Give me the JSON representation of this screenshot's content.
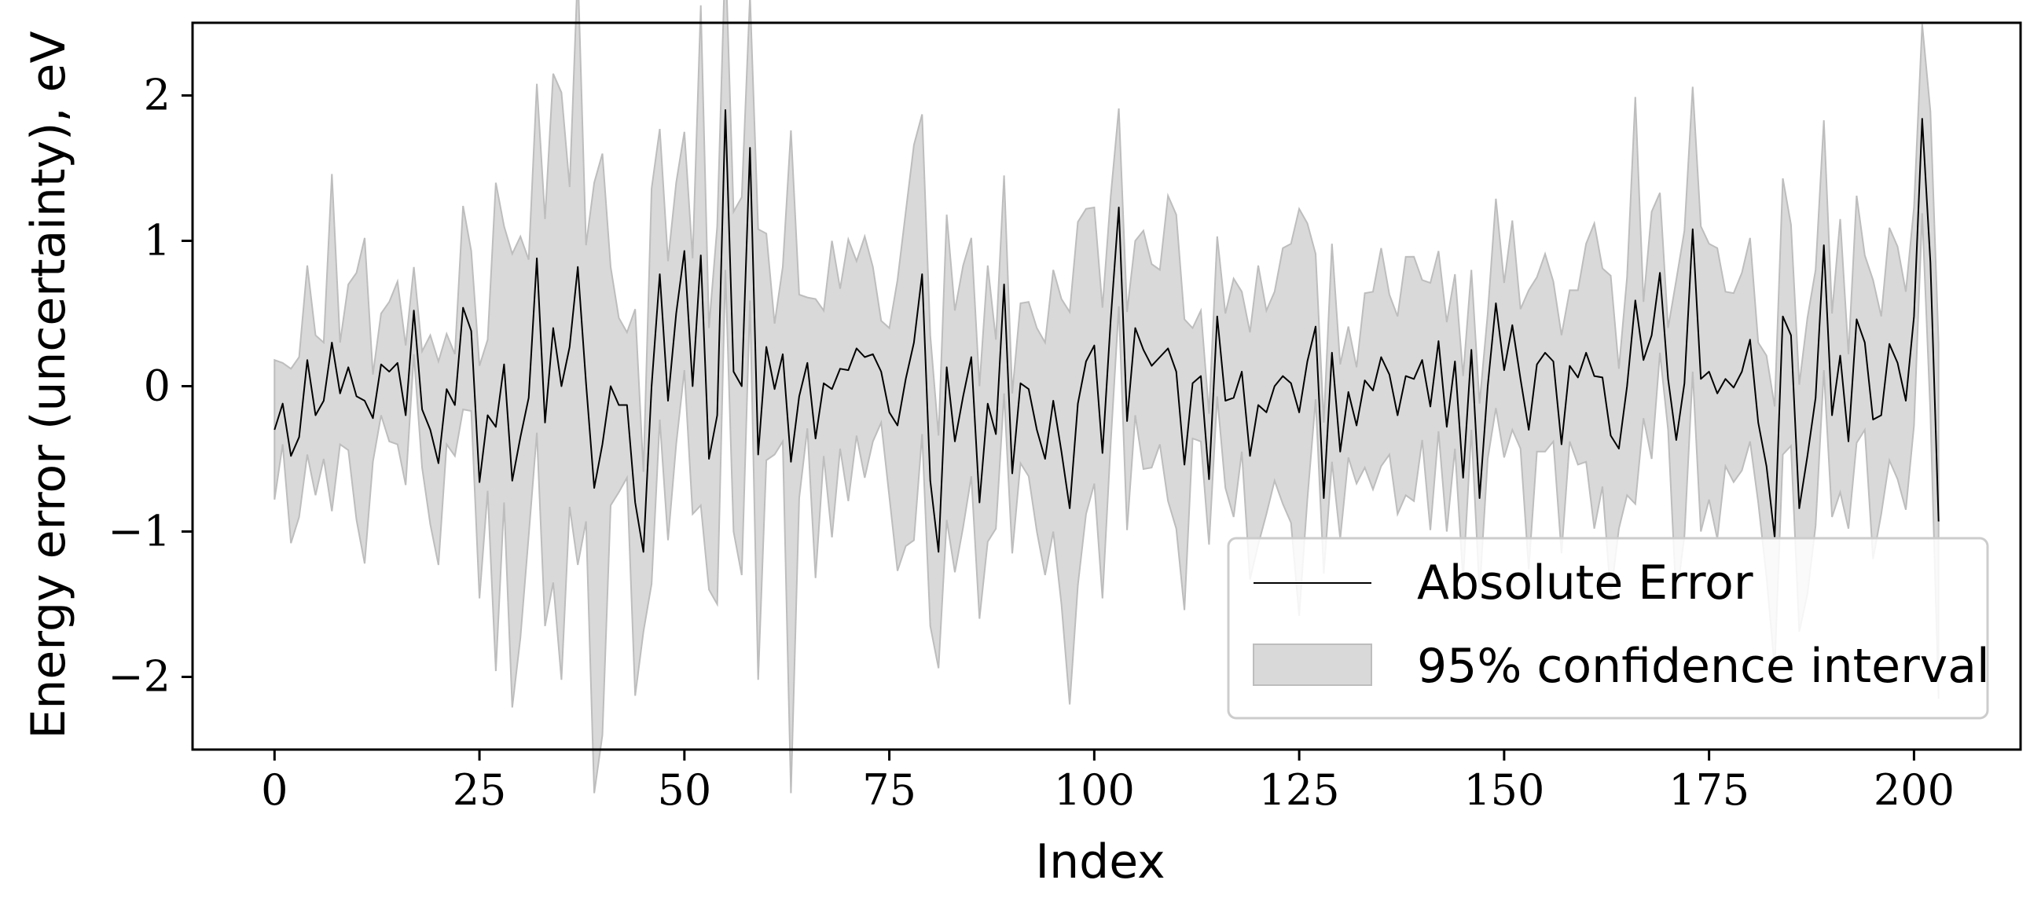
{
  "chart_data": {
    "type": "line",
    "xlabel": "Index",
    "ylabel": "Energy error (uncertainty), eV",
    "xlim": [
      -10,
      213
    ],
    "ylim": [
      -2.5,
      2.5
    ],
    "x_ticks": [
      0,
      25,
      50,
      75,
      100,
      125,
      150,
      175,
      200
    ],
    "y_ticks": [
      2,
      1,
      0,
      -1,
      -2
    ],
    "x_tick_labels": [
      "0",
      "25",
      "50",
      "75",
      "100",
      "125",
      "150",
      "175",
      "200"
    ],
    "y_tick_labels": [
      "2",
      "1",
      "0",
      "−1",
      "−2"
    ],
    "grid": false,
    "legend_position": "lower-right",
    "legend": [
      "Absolute Error",
      "95% confidence interval"
    ],
    "colors": {
      "line": "#000000",
      "band_fill": "#d9d9d9",
      "band_edge": "#bdbdbd"
    },
    "series": [
      {
        "name": "Absolute Error",
        "x_start": 0,
        "values": [
          -0.3,
          -0.12,
          -0.48,
          -0.35,
          0.18,
          -0.2,
          -0.1,
          0.3,
          -0.05,
          0.13,
          -0.07,
          -0.1,
          -0.22,
          0.15,
          0.1,
          0.16,
          -0.2,
          0.52,
          -0.16,
          -0.3,
          -0.53,
          -0.02,
          -0.13,
          0.54,
          0.38,
          -0.66,
          -0.2,
          -0.28,
          0.15,
          -0.65,
          -0.35,
          -0.08,
          0.88,
          -0.25,
          0.4,
          0.0,
          0.27,
          0.82,
          0.02,
          -0.7,
          -0.4,
          0.0,
          -0.13,
          -0.13,
          -0.8,
          -1.14,
          0.0,
          0.77,
          -0.1,
          0.5,
          0.93,
          0.0,
          0.9,
          -0.5,
          -0.2,
          1.9,
          0.1,
          0.0,
          1.64,
          -0.47,
          0.27,
          -0.02,
          0.22,
          -0.52,
          -0.07,
          0.16,
          -0.36,
          0.02,
          -0.02,
          0.12,
          0.11,
          0.26,
          0.2,
          0.22,
          0.1,
          -0.18,
          -0.27,
          0.05,
          0.3,
          0.77,
          -0.65,
          -1.14,
          0.13,
          -0.38,
          -0.07,
          0.2,
          -0.8,
          -0.12,
          -0.33,
          0.7,
          -0.6,
          0.02,
          -0.02,
          -0.3,
          -0.5,
          -0.1,
          -0.45,
          -0.84,
          -0.12,
          0.17,
          0.28,
          -0.46,
          0.45,
          1.23,
          -0.24,
          0.4,
          0.25,
          0.14,
          0.2,
          0.26,
          0.1,
          -0.54,
          0.02,
          0.07,
          -0.64,
          0.48,
          -0.1,
          -0.08,
          0.1,
          -0.48,
          -0.13,
          -0.18,
          0.0,
          0.07,
          0.02,
          -0.18,
          0.17,
          0.41,
          -0.77,
          0.23,
          -0.45,
          -0.04,
          -0.27,
          0.04,
          -0.03,
          0.2,
          0.08,
          -0.2,
          0.07,
          0.05,
          0.18,
          -0.14,
          0.31,
          -0.28,
          0.17,
          -0.63,
          0.25,
          -0.77,
          0.0,
          0.57,
          0.11,
          0.42,
          0.05,
          -0.3,
          0.15,
          0.23,
          0.17,
          -0.4,
          0.14,
          0.06,
          0.23,
          0.07,
          0.06,
          -0.34,
          -0.43,
          0.0,
          0.59,
          0.18,
          0.35,
          0.78,
          0.05,
          -0.37,
          0.02,
          1.08,
          0.05,
          0.1,
          -0.05,
          0.05,
          -0.01,
          0.1,
          0.32,
          -0.25,
          -0.55,
          -1.04,
          0.48,
          0.35,
          -0.84,
          -0.48,
          -0.08,
          0.97,
          -0.2,
          0.21,
          -0.38,
          0.46,
          0.3,
          -0.23,
          -0.2,
          0.29,
          0.16,
          -0.1,
          0.48,
          1.84,
          0.85,
          -0.93
        ]
      },
      {
        "name": "95% confidence interval",
        "x_start": 0,
        "half_width": [
          0.48,
          0.28,
          0.6,
          0.55,
          0.65,
          0.55,
          0.4,
          1.16,
          0.35,
          0.57,
          0.85,
          1.12,
          0.3,
          0.35,
          0.48,
          0.56,
          0.48,
          0.3,
          0.4,
          0.65,
          0.7,
          0.38,
          0.35,
          0.7,
          0.55,
          0.8,
          0.52,
          1.68,
          0.95,
          1.56,
          1.38,
          0.95,
          1.2,
          1.4,
          1.75,
          2.02,
          1.1,
          2.05,
          0.95,
          2.1,
          2.0,
          0.82,
          0.6,
          0.5,
          1.33,
          0.55,
          1.36,
          1.0,
          0.96,
          0.9,
          0.82,
          0.88,
          1.72,
          0.9,
          1.3,
          1.1,
          1.1,
          1.3,
          1.05,
          1.55,
          0.78,
          0.45,
          0.6,
          2.28,
          0.7,
          0.45,
          0.96,
          0.5,
          1.02,
          0.55,
          0.9,
          0.6,
          0.83,
          0.6,
          0.35,
          0.58,
          1.0,
          1.15,
          1.36,
          1.1,
          1.0,
          0.8,
          1.05,
          0.9,
          0.9,
          0.82,
          0.8,
          0.95,
          0.65,
          0.75,
          0.55,
          0.55,
          0.6,
          0.7,
          0.8,
          0.9,
          1.05,
          1.35,
          1.25,
          1.05,
          0.95,
          1.0,
          0.85,
          0.68,
          0.75,
          0.6,
          0.82,
          0.7,
          0.6,
          1.05,
          1.08,
          1.0,
          0.38,
          0.45,
          0.45,
          0.55,
          0.6,
          0.82,
          0.55,
          0.85,
          0.96,
          0.7,
          0.65,
          0.88,
          0.96,
          1.4,
          0.95,
          0.5,
          0.52,
          0.75,
          0.6,
          0.45,
          0.4,
          0.6,
          0.68,
          0.75,
          0.55,
          0.68,
          0.82,
          0.84,
          0.55,
          0.85,
          0.62,
          0.72,
          0.6,
          0.7,
          0.55,
          0.65,
          0.5,
          0.72,
          0.6,
          0.72,
          0.48,
          0.96,
          0.6,
          0.68,
          0.55,
          0.75,
          0.52,
          0.6,
          0.75,
          1.05,
          0.75,
          1.1,
          0.55,
          0.75,
          1.4,
          0.4,
          0.85,
          0.55,
          0.35,
          1.1,
          1.05,
          0.98,
          1.05,
          0.88,
          1.0,
          0.6,
          0.65,
          0.68,
          0.7,
          0.55,
          0.76,
          0.9,
          0.95,
          0.76,
          0.85,
          0.95,
          0.88,
          0.86,
          0.7,
          0.94,
          0.6,
          0.85,
          0.6,
          0.96,
          0.68,
          0.8,
          0.8,
          0.75,
          0.75,
          0.65,
          1.04,
          1.22
        ]
      }
    ]
  }
}
